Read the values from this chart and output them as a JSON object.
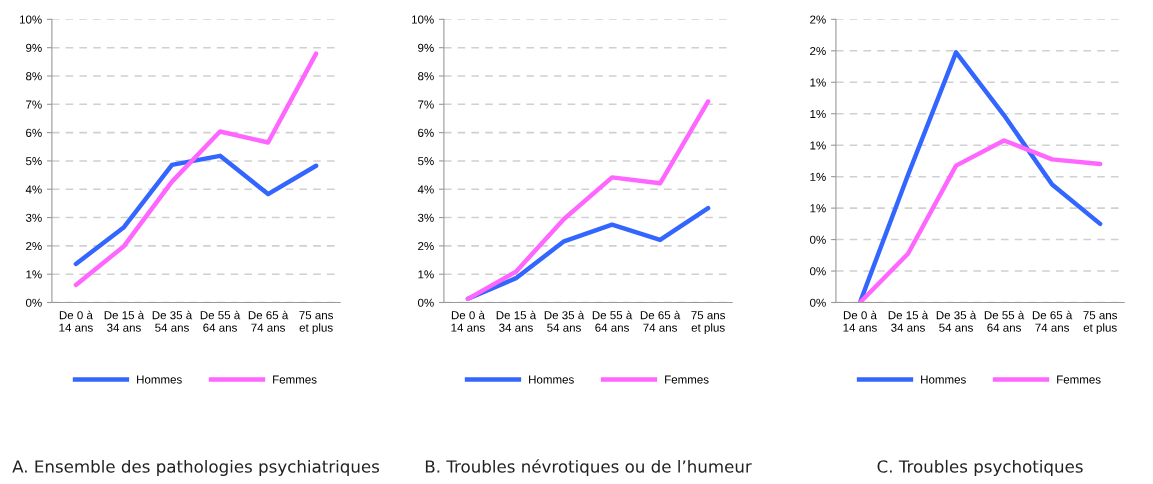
{
  "chart_data": [
    {
      "type": "line",
      "title": "A. Ensemble des pathologies psychiatriques",
      "categories": [
        "De 0 à\n14 ans",
        "De 15 à\n34 ans",
        "De 35 à\n54 ans",
        "De 55 à\n64 ans",
        "De 65 à\n74 ans",
        "75 ans\net plus"
      ],
      "series": [
        {
          "name": "Hommes",
          "color": "#3366ff",
          "values": [
            1.36,
            2.66,
            4.86,
            5.18,
            3.83,
            4.83
          ]
        },
        {
          "name": "Femmes",
          "color": "#ff66ff",
          "values": [
            0.62,
            1.99,
            4.27,
            6.04,
            5.65,
            8.79
          ]
        }
      ],
      "ylim": [
        0,
        10
      ],
      "yticks": [
        {
          "value": 0,
          "label": "0%"
        },
        {
          "value": 1,
          "label": "1%"
        },
        {
          "value": 2,
          "label": "2%"
        },
        {
          "value": 3,
          "label": "3%"
        },
        {
          "value": 4,
          "label": "4%"
        },
        {
          "value": 5,
          "label": "5%"
        },
        {
          "value": 6,
          "label": "6%"
        },
        {
          "value": 7,
          "label": "7%"
        },
        {
          "value": 8,
          "label": "8%"
        },
        {
          "value": 9,
          "label": "9%"
        },
        {
          "value": 10,
          "label": "10%"
        }
      ],
      "grid": "y",
      "legend": "bottom",
      "marker": "none",
      "line_style": "solid"
    },
    {
      "type": "line",
      "title": "B. Troubles névrotiques ou de l’humeur",
      "categories": [
        "De 0 à\n14 ans",
        "De 15 à\n34 ans",
        "De 35 à\n54 ans",
        "De 55 à\n64 ans",
        "De 65 à\n74 ans",
        "75 ans\net plus"
      ],
      "series": [
        {
          "name": "Hommes",
          "color": "#3366ff",
          "values": [
            0.13,
            0.86,
            2.16,
            2.75,
            2.21,
            3.33
          ]
        },
        {
          "name": "Femmes",
          "color": "#ff66ff",
          "values": [
            0.13,
            1.09,
            2.95,
            4.42,
            4.21,
            7.1
          ]
        }
      ],
      "ylim": [
        0,
        10
      ],
      "yticks": [
        {
          "value": 0,
          "label": "0%"
        },
        {
          "value": 1,
          "label": "1%"
        },
        {
          "value": 2,
          "label": "2%"
        },
        {
          "value": 3,
          "label": "3%"
        },
        {
          "value": 4,
          "label": "4%"
        },
        {
          "value": 5,
          "label": "5%"
        },
        {
          "value": 6,
          "label": "6%"
        },
        {
          "value": 7,
          "label": "7%"
        },
        {
          "value": 8,
          "label": "8%"
        },
        {
          "value": 9,
          "label": "9%"
        },
        {
          "value": 10,
          "label": "10%"
        }
      ],
      "grid": "y",
      "legend": "bottom",
      "marker": "none",
      "line_style": "solid"
    },
    {
      "type": "line",
      "title": "C. Troubles psychotiques",
      "categories": [
        "De 0 à\n14 ans",
        "De 15 à\n34 ans",
        "De 35 à\n54 ans",
        "De 55 à\n64 ans",
        "De 65 à\n74 ans",
        "75 ans\net plus"
      ],
      "series": [
        {
          "name": "Hommes",
          "color": "#3366ff",
          "values": [
            0.0,
            0.81,
            1.59,
            1.19,
            0.75,
            0.5
          ]
        },
        {
          "name": "Femmes",
          "color": "#ff66ff",
          "values": [
            0.0,
            0.31,
            0.87,
            1.03,
            0.91,
            0.88
          ]
        }
      ],
      "ylim": [
        0,
        1.8
      ],
      "yticks": [
        {
          "value": 0,
          "label": "0%"
        },
        {
          "value": 0.2,
          "label": "0%"
        },
        {
          "value": 0.4,
          "label": "0%"
        },
        {
          "value": 0.6,
          "label": "1%"
        },
        {
          "value": 0.8,
          "label": "1%"
        },
        {
          "value": 1.0,
          "label": "1%"
        },
        {
          "value": 1.2,
          "label": "1%"
        },
        {
          "value": 1.4,
          "label": "1%"
        },
        {
          "value": 1.6,
          "label": "2%"
        },
        {
          "value": 1.8,
          "label": "2%"
        }
      ],
      "grid": "y",
      "legend": "bottom",
      "marker": "none",
      "line_style": "solid"
    }
  ]
}
